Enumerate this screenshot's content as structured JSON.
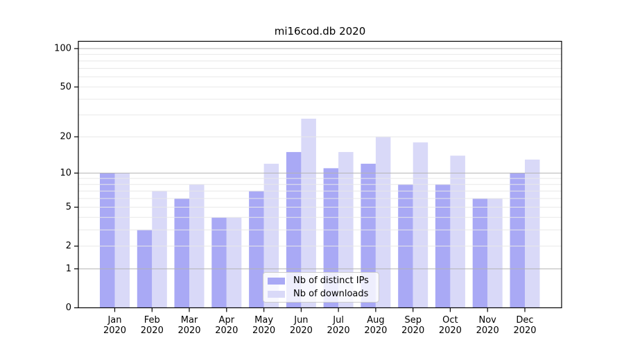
{
  "chart_data": {
    "type": "bar",
    "title": "mi16cod.db 2020",
    "months": [
      "Jan",
      "Feb",
      "Mar",
      "Apr",
      "May",
      "Jun",
      "Jul",
      "Aug",
      "Sep",
      "Oct",
      "Nov",
      "Dec"
    ],
    "year": "2020",
    "categories": [
      "Jan 2020",
      "Feb 2020",
      "Mar 2020",
      "Apr 2020",
      "May 2020",
      "Jun 2020",
      "Jul 2020",
      "Aug 2020",
      "Sep 2020",
      "Oct 2020",
      "Nov 2020",
      "Dec 2020"
    ],
    "series": [
      {
        "name": "Nb of distinct IPs",
        "color": "#a9a9f5",
        "values": [
          10,
          3,
          6,
          4,
          7,
          15,
          11,
          12,
          8,
          8,
          6,
          10
        ]
      },
      {
        "name": "Nb of downloads",
        "color": "#d9d9f8",
        "values": [
          10,
          7,
          8,
          4,
          12,
          28,
          15,
          20,
          18,
          14,
          6,
          13
        ]
      }
    ],
    "yscale": "log1p",
    "ylim": [
      0,
      114
    ],
    "y_tick_labels": [
      0,
      1,
      2,
      5,
      10,
      20,
      50,
      100
    ],
    "y_major_gridlines": [
      1,
      10,
      100
    ],
    "y_minor_gridlines": [
      2,
      3,
      4,
      5,
      6,
      7,
      8,
      9,
      20,
      30,
      40,
      50,
      60,
      70,
      80,
      90
    ],
    "grid": true,
    "legend_position": "lower center",
    "colors": {
      "major_grid": "#b3b3b3",
      "minor_grid": "#e8e8e8",
      "spine": "#000000",
      "tick_text": "#000000",
      "legend_border": "#cccccc",
      "background": "#ffffff"
    }
  }
}
